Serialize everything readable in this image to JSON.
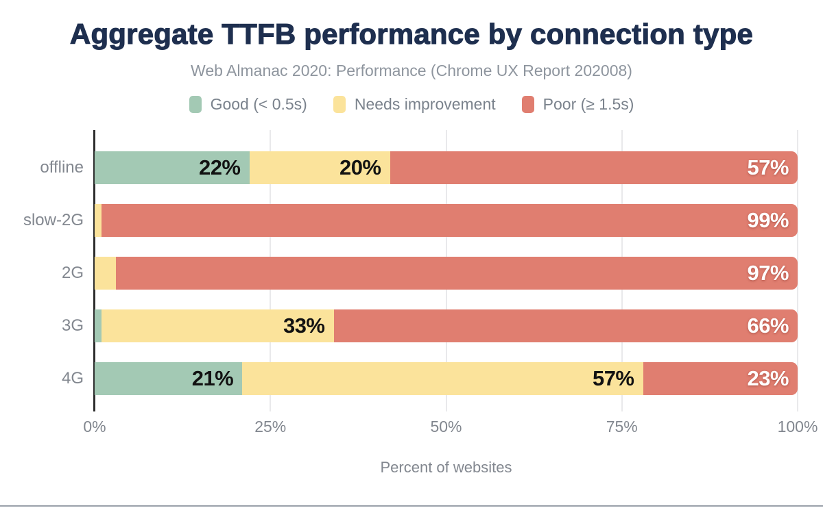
{
  "chart_data": {
    "type": "bar",
    "stacked": true,
    "orientation": "horizontal",
    "title": "Aggregate TTFB performance by connection type",
    "subtitle": "Web Almanac 2020: Performance (Chrome UX Report 202008)",
    "categories": [
      "offline",
      "slow-2G",
      "2G",
      "3G",
      "4G"
    ],
    "series": [
      {
        "name": "Good (< 0.5s)",
        "color": "#a3c9b4",
        "values": [
          22,
          0,
          0,
          1,
          21
        ]
      },
      {
        "name": "Needs improvement",
        "color": "#fbe39b",
        "values": [
          20,
          1,
          3,
          33,
          57
        ]
      },
      {
        "name": "Poor (≥ 1.5s)",
        "color": "#e07e70",
        "values": [
          57,
          99,
          97,
          66,
          23
        ]
      }
    ],
    "value_suffix": "%",
    "xlabel": "Percent of websites",
    "x_ticks": [
      "0%",
      "25%",
      "50%",
      "75%",
      "100%"
    ],
    "xlim": [
      0,
      100
    ],
    "legend_position": "top",
    "grid": "vertical",
    "colors": {
      "title": "#1e2f4f",
      "subtitle": "#8e959e",
      "axis_text": "#82878f",
      "axis_line": "#2d2d2d",
      "gridline": "#e9e9eb",
      "label_on_light": "#121212",
      "label_on_poor": "#ffffff",
      "bottom_rule": "#9aa1aa"
    }
  }
}
